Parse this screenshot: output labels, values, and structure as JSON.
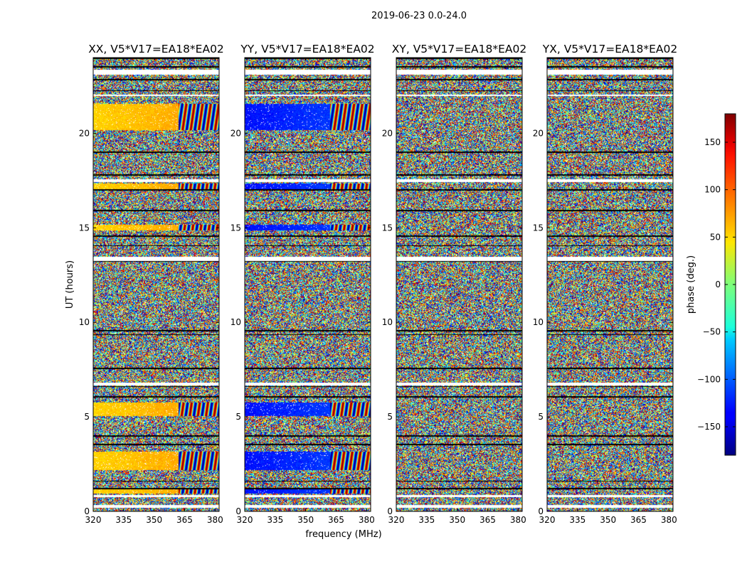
{
  "chart_data": {
    "type": "heatmap",
    "title": "2019-06-23 0.0-24.0",
    "xlabel": "frequency (MHz)",
    "ylabel": "UT (hours)",
    "xlim": [
      320,
      382
    ],
    "ylim": [
      0,
      24
    ],
    "xticks": [
      320,
      335,
      350,
      365,
      380
    ],
    "yticks": [
      0,
      5,
      10,
      15,
      20
    ],
    "colorbar": {
      "label": "phase (deg.)",
      "range": [
        -180,
        180
      ],
      "ticks": [
        150,
        100,
        50,
        0,
        -50,
        -100,
        -150
      ],
      "tick_labels": [
        "150",
        "100",
        "50",
        "0",
        "−50",
        "−100",
        "−150"
      ],
      "colormap": "jet"
    },
    "panels": [
      {
        "name": "XX",
        "title": "XX, V5*V17=EA18*EA02",
        "mean_phase": 60,
        "coherent_below_mhz": 362
      },
      {
        "name": "YY",
        "title": "YY, V5*V17=EA18*EA02",
        "mean_phase": -130,
        "coherent_below_mhz": 362
      },
      {
        "name": "XY",
        "title": "XY, V5*V17=EA18*EA02",
        "mean_phase": null,
        "coherent_below_mhz": null
      },
      {
        "name": "YX",
        "title": "YX, V5*V17=EA18*EA02",
        "mean_phase": null,
        "coherent_below_mhz": null
      }
    ],
    "flagged_blank_hours": [
      [
        0.2,
        0.35
      ],
      [
        0.75,
        0.85
      ],
      [
        6.65,
        6.8
      ],
      [
        13.25,
        13.45
      ],
      [
        17.4,
        17.55
      ],
      [
        21.95,
        22.05
      ],
      [
        23.1,
        23.35
      ]
    ],
    "flagged_dark_hours": [
      1.2,
      1.6,
      3.55,
      4.0,
      6.05,
      6.6,
      7.55,
      9.35,
      9.55,
      13.25,
      14.05,
      14.55,
      15.9,
      17.0,
      17.8,
      19.0,
      22.25,
      22.85,
      23.5,
      23.95
    ],
    "coherent_hour_ranges": [
      [
        0.95,
        1.2
      ],
      [
        2.2,
        3.15
      ],
      [
        5.05,
        5.75
      ],
      [
        14.85,
        15.15
      ],
      [
        17.05,
        17.35
      ],
      [
        20.15,
        21.55
      ]
    ]
  }
}
